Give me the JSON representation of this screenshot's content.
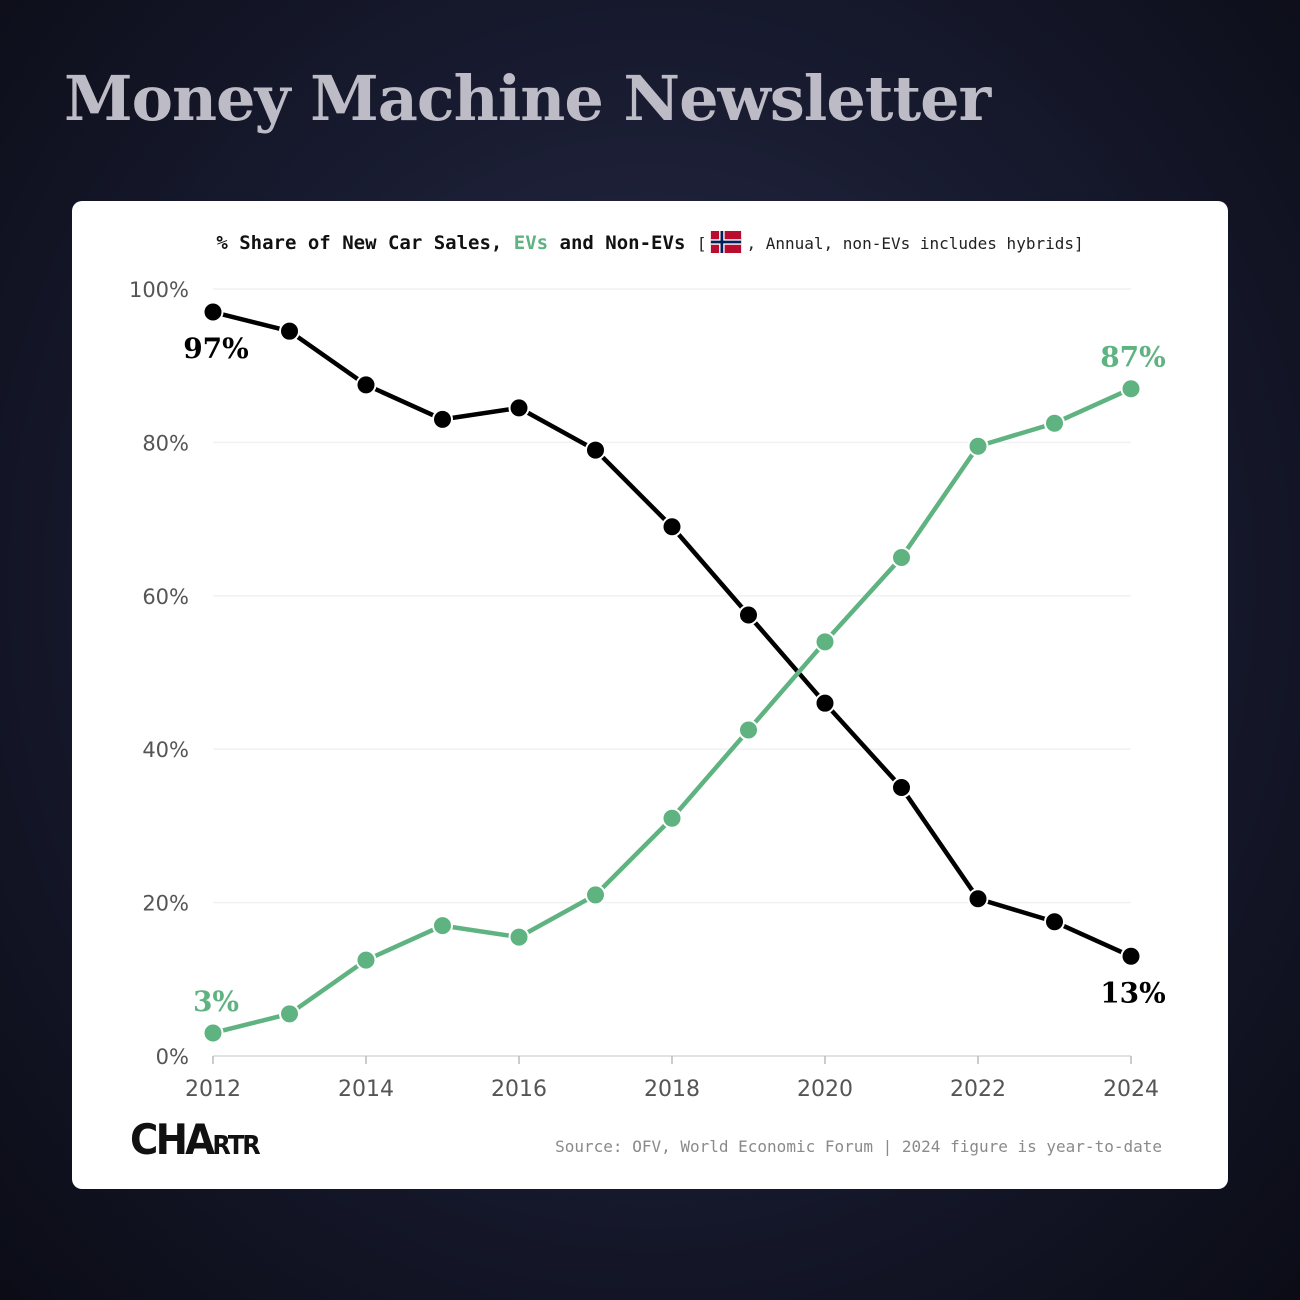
{
  "page": {
    "title": "Money Machine Newsletter"
  },
  "chart_data": {
    "type": "line",
    "title_parts": {
      "prefix": "% Share of New Car Sales, ",
      "ev": "EVs",
      "middle": " and Non-EVs ",
      "open_bracket": "[",
      "note": ", Annual, non-EVs includes hybrids",
      "close_bracket": "]"
    },
    "flag_icon": "norway-flag-icon",
    "x": [
      2012,
      2013,
      2014,
      2015,
      2016,
      2017,
      2018,
      2019,
      2020,
      2021,
      2022,
      2023,
      2024
    ],
    "series": [
      {
        "name": "Non-EVs",
        "color": "#000000",
        "values": [
          97,
          94.5,
          87.5,
          83,
          84.5,
          79,
          69,
          57.5,
          46,
          35,
          20.5,
          17.5,
          13
        ]
      },
      {
        "name": "EVs",
        "color": "#5fb381",
        "values": [
          3,
          5.5,
          12.5,
          17,
          15.5,
          21,
          31,
          42.5,
          54,
          65,
          79.5,
          82.5,
          87
        ]
      }
    ],
    "annotations": [
      {
        "series": "Non-EVs",
        "x": 2012,
        "label": "97%"
      },
      {
        "series": "EVs",
        "x": 2012,
        "label": "3%"
      },
      {
        "series": "EVs",
        "x": 2024,
        "label": "87%"
      },
      {
        "series": "Non-EVs",
        "x": 2024,
        "label": "13%"
      }
    ],
    "y_ticks": [
      {
        "value": 0,
        "label": "0%"
      },
      {
        "value": 20,
        "label": "20%"
      },
      {
        "value": 40,
        "label": "40%"
      },
      {
        "value": 60,
        "label": "60%"
      },
      {
        "value": 80,
        "label": "80%"
      },
      {
        "value": 100,
        "label": "100%"
      }
    ],
    "x_ticks": [
      {
        "value": 2012,
        "label": "2012"
      },
      {
        "value": 2014,
        "label": "2014"
      },
      {
        "value": 2016,
        "label": "2016"
      },
      {
        "value": 2018,
        "label": "2018"
      },
      {
        "value": 2020,
        "label": "2020"
      },
      {
        "value": 2022,
        "label": "2022"
      },
      {
        "value": 2024,
        "label": "2024"
      }
    ],
    "ylim": [
      0,
      100
    ],
    "xlim": [
      2012,
      2024
    ],
    "grid": true,
    "legend": "none"
  },
  "footer": {
    "brand_main": "CHA",
    "brand_small": "RTR",
    "source": "Source: OFV, World Economic Forum | 2024 figure is year-to-date"
  }
}
